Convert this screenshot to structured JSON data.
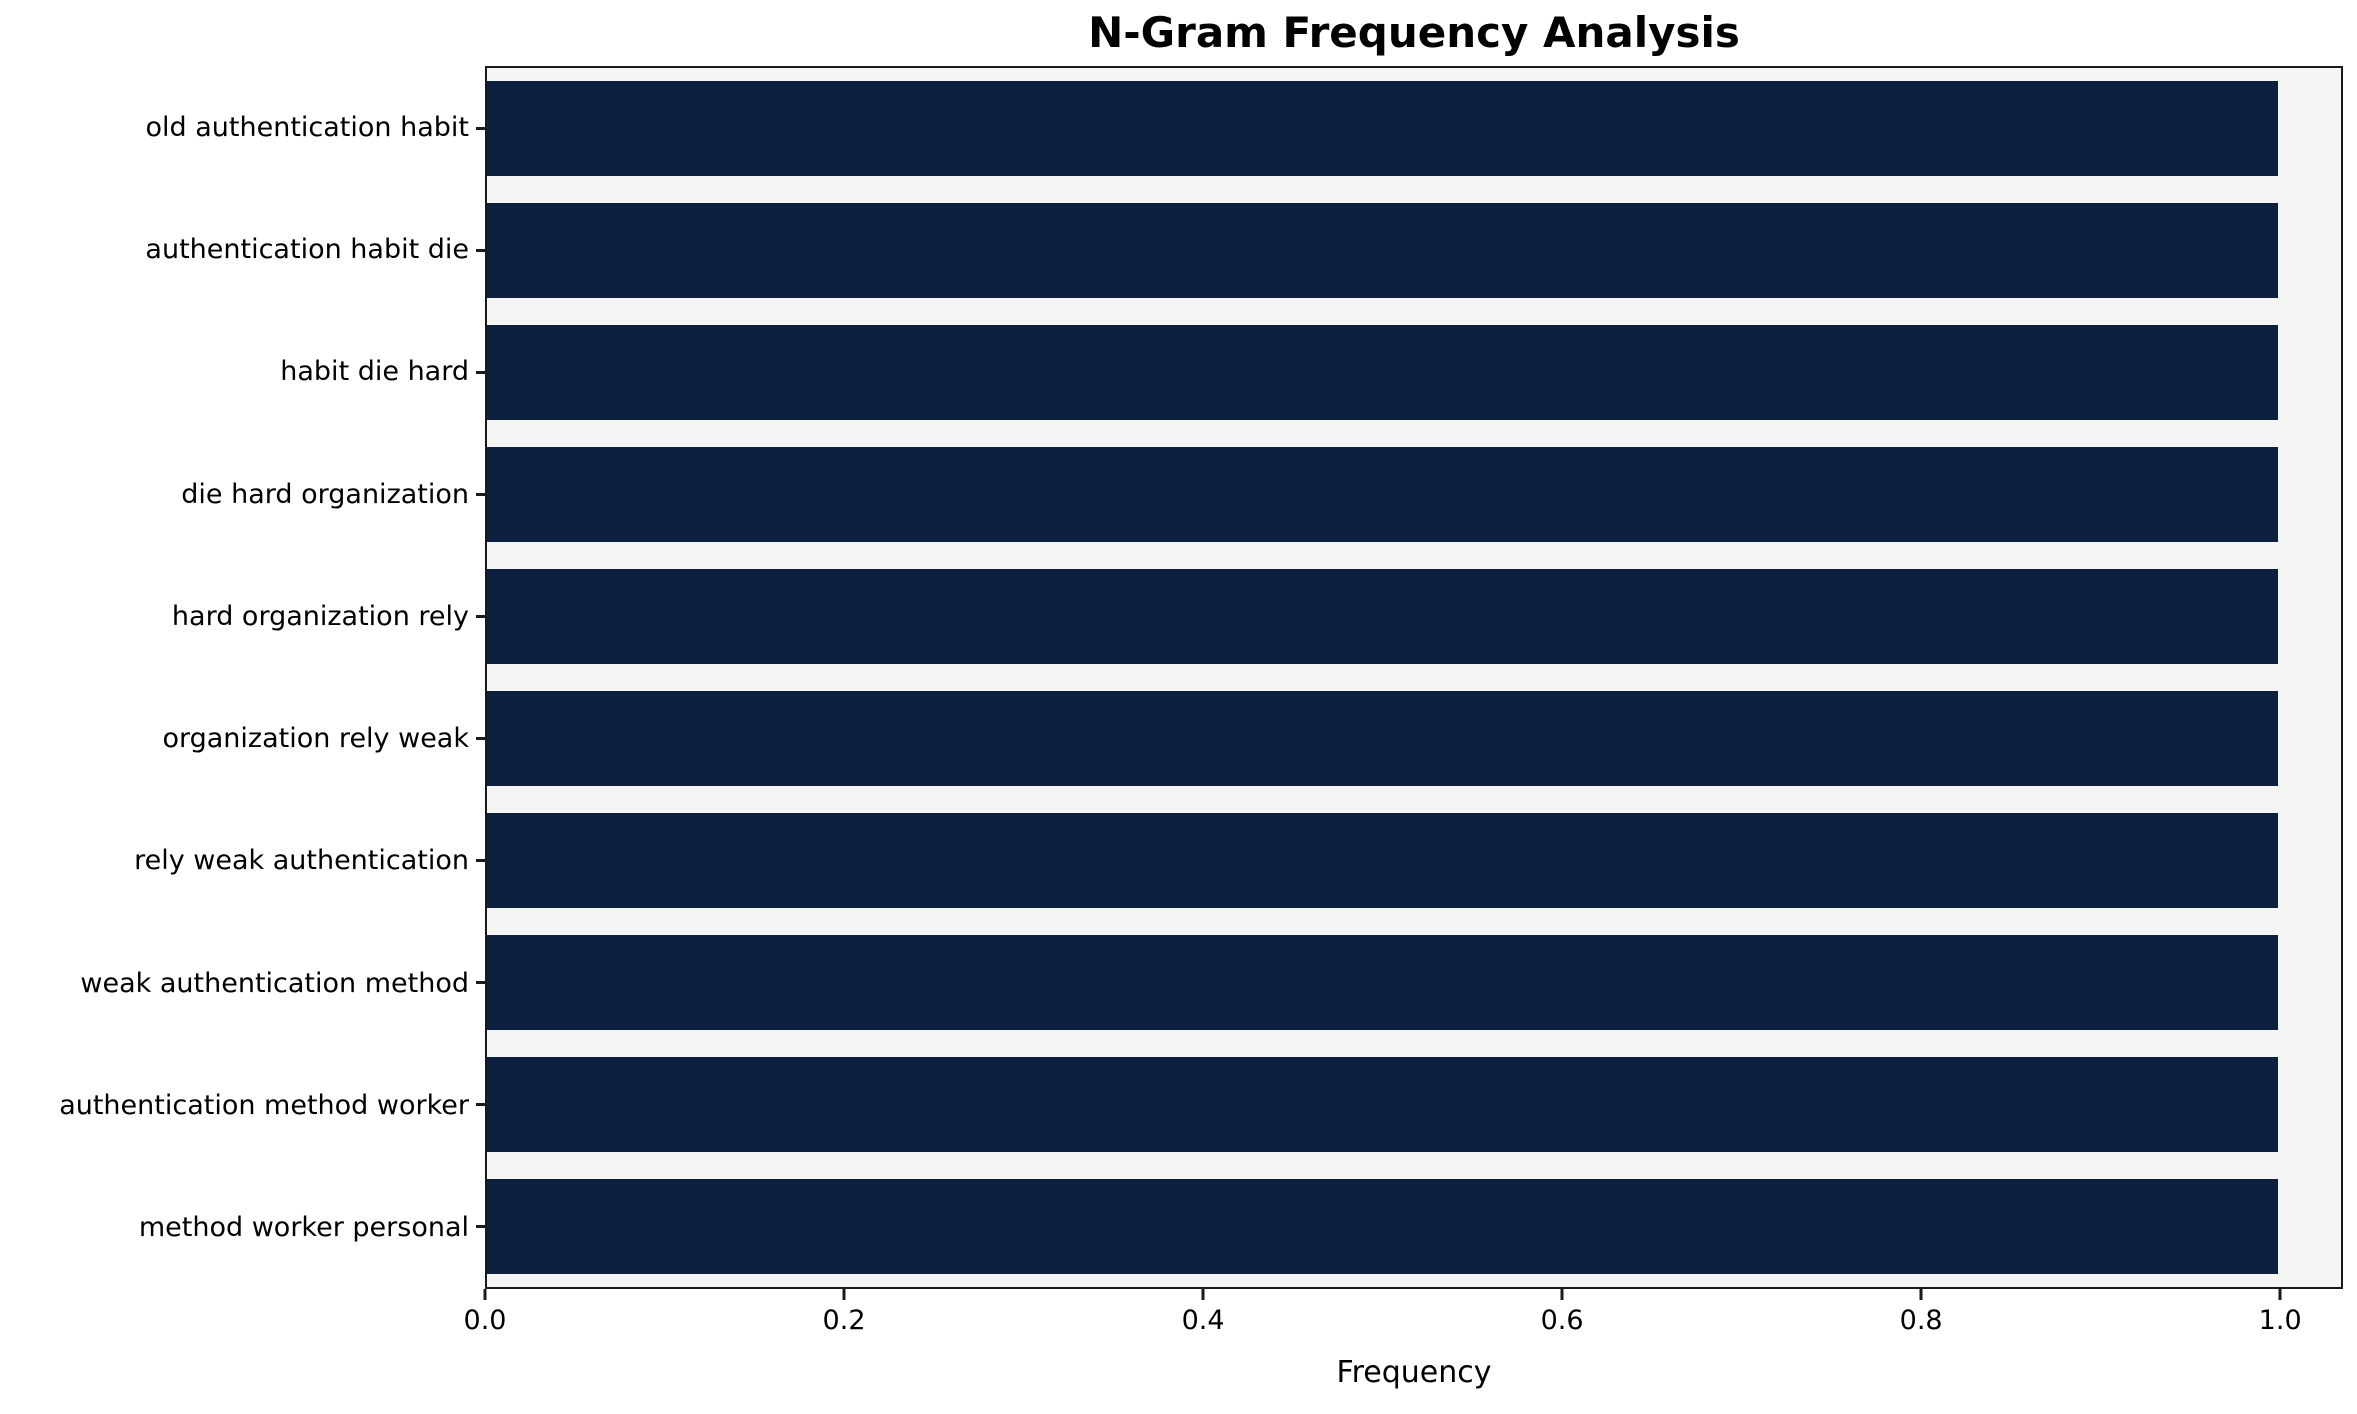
{
  "chart_data": {
    "type": "bar",
    "orientation": "horizontal",
    "title": "N-Gram Frequency Analysis",
    "xlabel": "Frequency",
    "ylabel": "",
    "categories": [
      "old authentication habit",
      "authentication habit die",
      "habit die hard",
      "die hard organization",
      "hard organization rely",
      "organization rely weak",
      "rely weak authentication",
      "weak authentication method",
      "authentication method worker",
      "method worker personal"
    ],
    "values": [
      1.0,
      1.0,
      1.0,
      1.0,
      1.0,
      1.0,
      1.0,
      1.0,
      1.0,
      1.0
    ],
    "xlim": [
      0,
      1.035
    ],
    "xtick_values": [
      0.0,
      0.2,
      0.4,
      0.6,
      0.8,
      1.0
    ],
    "xtick_labels": [
      "0.0",
      "0.2",
      "0.4",
      "0.6",
      "0.8",
      "1.0"
    ],
    "grid": false,
    "legend": null,
    "colors": {
      "bar": "#0d213f",
      "plot_background": "#f5f5f4",
      "figure_background": "#ffffff",
      "axis": "#1a1a1a"
    }
  }
}
